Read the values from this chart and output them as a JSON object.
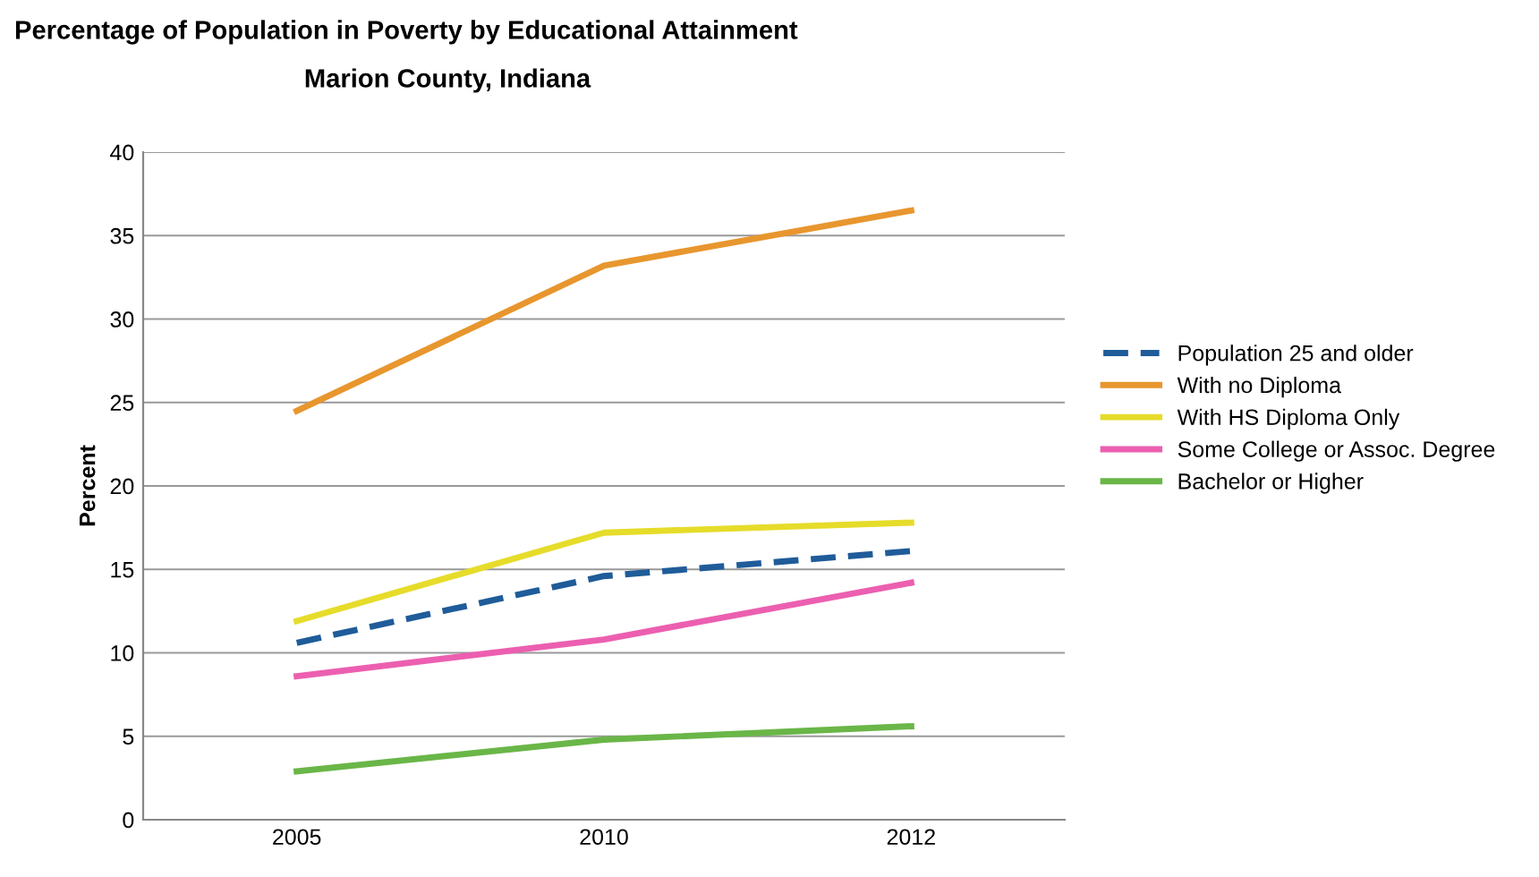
{
  "chart_data": {
    "type": "line",
    "title": "Percentage of Population in Poverty by Educational Attainment",
    "subtitle": "Marion County, Indiana",
    "ylabel": "Percent",
    "categories": [
      "2005",
      "2010",
      "2012"
    ],
    "series": [
      {
        "name": "Population 25 and older",
        "color": "#1f5c99",
        "values": [
          10.6,
          14.6,
          16.1
        ],
        "line_style": "dashed"
      },
      {
        "name": "With no Diploma",
        "color": "#e8962e",
        "values": [
          24.5,
          33.2,
          36.5
        ]
      },
      {
        "name": "With HS Diploma Only",
        "color": "#e6dc2a",
        "values": [
          11.9,
          17.2,
          17.8
        ]
      },
      {
        "name": "Some College or Assoc. Degree",
        "color": "#ec5fb0",
        "values": [
          8.6,
          10.8,
          14.2
        ]
      },
      {
        "name": "Bachelor or Higher",
        "color": "#6ab648",
        "values": [
          2.9,
          4.8,
          5.6
        ]
      }
    ],
    "ylim": [
      0,
      40
    ],
    "yticks": [
      0,
      5,
      10,
      15,
      20,
      25,
      30,
      35,
      40
    ],
    "grid": "y",
    "legend": "right",
    "marker": "none"
  }
}
